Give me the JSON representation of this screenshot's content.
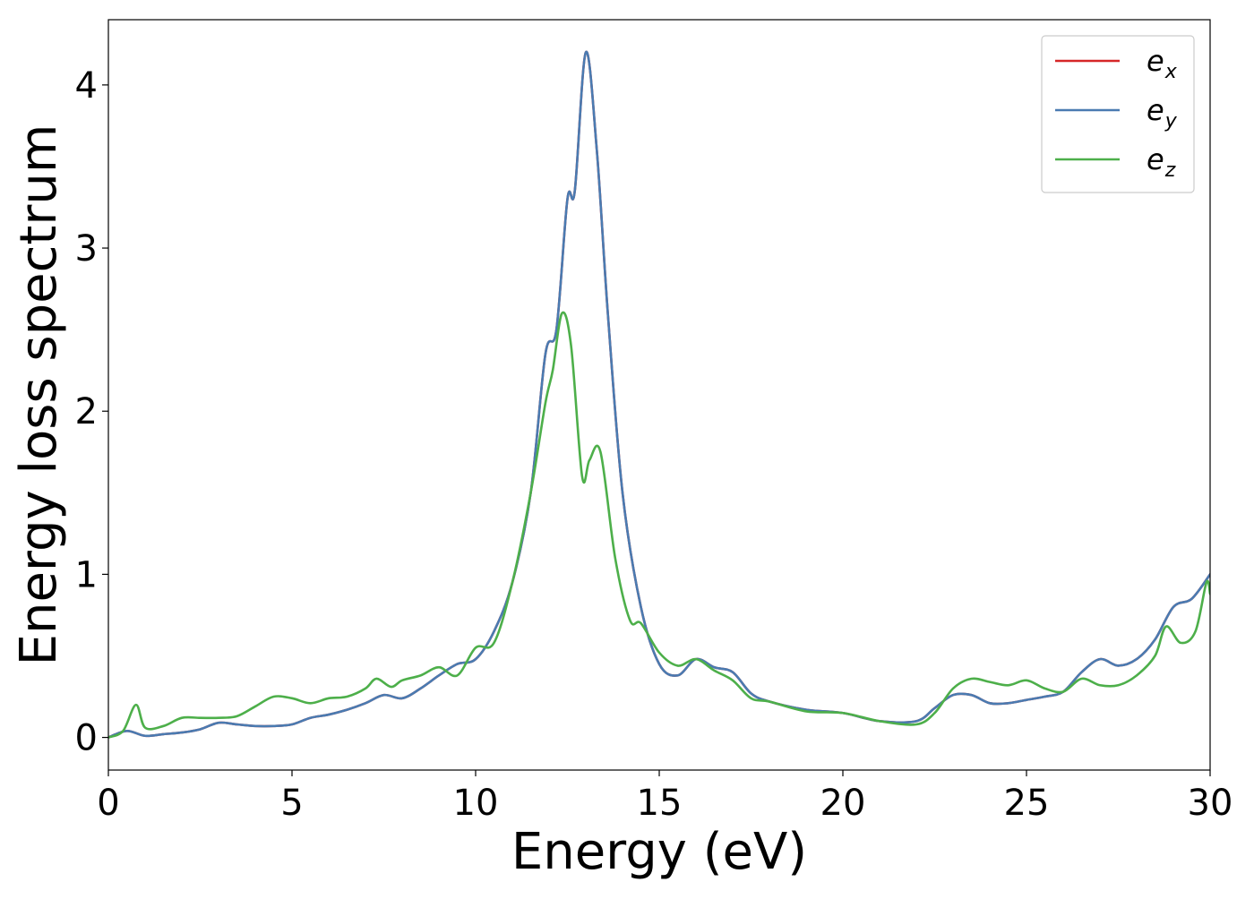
{
  "chart_data": {
    "type": "line",
    "title": "",
    "xlabel": "Energy (eV)",
    "ylabel": "Energy loss spectrum",
    "xlim": [
      0,
      30
    ],
    "ylim": [
      -0.2,
      4.4
    ],
    "xticks": [
      0,
      5,
      10,
      15,
      20,
      25,
      30
    ],
    "xtick_labels": [
      "0",
      "5",
      "10",
      "15",
      "20",
      "25",
      "30"
    ],
    "yticks": [
      0,
      1,
      2,
      3,
      4
    ],
    "ytick_labels": [
      "0",
      "1",
      "2",
      "3",
      "4"
    ],
    "grid": false,
    "legend_position": "top-right",
    "series": [
      {
        "name": "e_x",
        "legend_base": "e",
        "legend_sub": "x",
        "color": "#d62728",
        "x": [
          0,
          0.5,
          1,
          1.5,
          2,
          2.5,
          3,
          3.5,
          4,
          4.5,
          5,
          5.5,
          6,
          6.5,
          7,
          7.5,
          8,
          8.5,
          9,
          9.5,
          10,
          10.5,
          11,
          11.5,
          11.9,
          12.2,
          12.5,
          12.7,
          13.0,
          13.3,
          13.6,
          14.0,
          14.5,
          15.0,
          15.5,
          16.0,
          16.5,
          17.0,
          17.5,
          18,
          19,
          20,
          21,
          22,
          22.5,
          23,
          23.5,
          24,
          24.5,
          25,
          25.5,
          26,
          26.5,
          27,
          27.5,
          28,
          28.5,
          29,
          29.5,
          30
        ],
        "y": [
          0.0,
          0.04,
          0.01,
          0.02,
          0.03,
          0.05,
          0.09,
          0.08,
          0.07,
          0.07,
          0.08,
          0.12,
          0.14,
          0.17,
          0.21,
          0.26,
          0.24,
          0.3,
          0.38,
          0.45,
          0.48,
          0.65,
          0.95,
          1.5,
          2.35,
          2.5,
          3.3,
          3.35,
          4.2,
          3.6,
          2.6,
          1.5,
          0.8,
          0.45,
          0.38,
          0.48,
          0.43,
          0.4,
          0.27,
          0.22,
          0.17,
          0.15,
          0.1,
          0.1,
          0.18,
          0.26,
          0.26,
          0.21,
          0.21,
          0.23,
          0.25,
          0.28,
          0.4,
          0.48,
          0.44,
          0.48,
          0.6,
          0.8,
          0.85,
          1.0
        ]
      },
      {
        "name": "e_y",
        "legend_base": "e",
        "legend_sub": "y",
        "color": "#4a7bb1",
        "x": [
          0,
          0.5,
          1,
          1.5,
          2,
          2.5,
          3,
          3.5,
          4,
          4.5,
          5,
          5.5,
          6,
          6.5,
          7,
          7.5,
          8,
          8.5,
          9,
          9.5,
          10,
          10.5,
          11,
          11.5,
          11.9,
          12.2,
          12.5,
          12.7,
          13.0,
          13.3,
          13.6,
          14.0,
          14.5,
          15.0,
          15.5,
          16.0,
          16.5,
          17.0,
          17.5,
          18,
          19,
          20,
          21,
          22,
          22.5,
          23,
          23.5,
          24,
          24.5,
          25,
          25.5,
          26,
          26.5,
          27,
          27.5,
          28,
          28.5,
          29,
          29.5,
          30
        ],
        "y": [
          0.0,
          0.04,
          0.01,
          0.02,
          0.03,
          0.05,
          0.09,
          0.08,
          0.07,
          0.07,
          0.08,
          0.12,
          0.14,
          0.17,
          0.21,
          0.26,
          0.24,
          0.3,
          0.38,
          0.45,
          0.48,
          0.65,
          0.95,
          1.5,
          2.35,
          2.5,
          3.3,
          3.35,
          4.2,
          3.6,
          2.6,
          1.5,
          0.8,
          0.45,
          0.38,
          0.48,
          0.43,
          0.4,
          0.27,
          0.22,
          0.17,
          0.15,
          0.1,
          0.1,
          0.18,
          0.26,
          0.26,
          0.21,
          0.21,
          0.23,
          0.25,
          0.28,
          0.4,
          0.48,
          0.44,
          0.48,
          0.6,
          0.8,
          0.85,
          1.0
        ]
      },
      {
        "name": "e_z",
        "legend_base": "e",
        "legend_sub": "z",
        "color": "#4daf4a",
        "x": [
          0,
          0.4,
          0.75,
          1.0,
          1.5,
          2,
          2.5,
          3,
          3.5,
          4,
          4.5,
          5,
          5.5,
          6,
          6.5,
          7,
          7.3,
          7.7,
          8,
          8.5,
          9,
          9.5,
          10,
          10.5,
          11,
          11.5,
          11.9,
          12.1,
          12.35,
          12.6,
          12.9,
          13.1,
          13.4,
          13.8,
          14.2,
          14.5,
          15,
          15.5,
          16,
          16.5,
          17,
          17.5,
          18,
          19,
          20,
          21,
          22,
          22.5,
          23,
          23.5,
          24,
          24.5,
          25,
          25.5,
          26,
          26.5,
          27,
          27.5,
          28,
          28.5,
          28.8,
          29.2,
          29.6,
          29.9,
          30
        ],
        "y": [
          0.0,
          0.04,
          0.2,
          0.06,
          0.07,
          0.12,
          0.12,
          0.12,
          0.13,
          0.19,
          0.25,
          0.24,
          0.21,
          0.24,
          0.25,
          0.3,
          0.36,
          0.31,
          0.35,
          0.38,
          0.43,
          0.38,
          0.55,
          0.58,
          0.95,
          1.5,
          2.05,
          2.25,
          2.6,
          2.4,
          1.6,
          1.7,
          1.75,
          1.1,
          0.72,
          0.7,
          0.52,
          0.44,
          0.48,
          0.41,
          0.35,
          0.24,
          0.22,
          0.16,
          0.15,
          0.1,
          0.08,
          0.15,
          0.3,
          0.36,
          0.34,
          0.32,
          0.35,
          0.3,
          0.28,
          0.36,
          0.32,
          0.32,
          0.38,
          0.5,
          0.68,
          0.58,
          0.65,
          0.95,
          0.88
        ]
      }
    ]
  }
}
